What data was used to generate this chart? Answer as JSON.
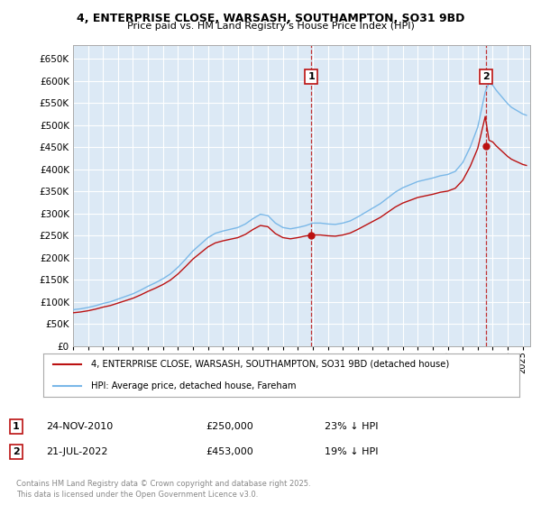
{
  "title_line1": "4, ENTERPRISE CLOSE, WARSASH, SOUTHAMPTON, SO31 9BD",
  "title_line2": "Price paid vs. HM Land Registry's House Price Index (HPI)",
  "plot_bg_color": "#dce9f5",
  "hpi_color": "#7ab8e8",
  "price_color": "#bb1111",
  "ylim": [
    0,
    680000
  ],
  "yticks": [
    0,
    50000,
    100000,
    150000,
    200000,
    250000,
    300000,
    350000,
    400000,
    450000,
    500000,
    550000,
    600000,
    650000
  ],
  "sale1_x": 2010.9,
  "sale1_y": 250000,
  "sale2_x": 2022.55,
  "sale2_y": 453000,
  "legend_line1": "4, ENTERPRISE CLOSE, WARSASH, SOUTHAMPTON, SO31 9BD (detached house)",
  "legend_line2": "HPI: Average price, detached house, Fareham",
  "footnote": "Contains HM Land Registry data © Crown copyright and database right 2025.\nThis data is licensed under the Open Government Licence v3.0.",
  "xmin": 1995,
  "xmax": 2025.5
}
